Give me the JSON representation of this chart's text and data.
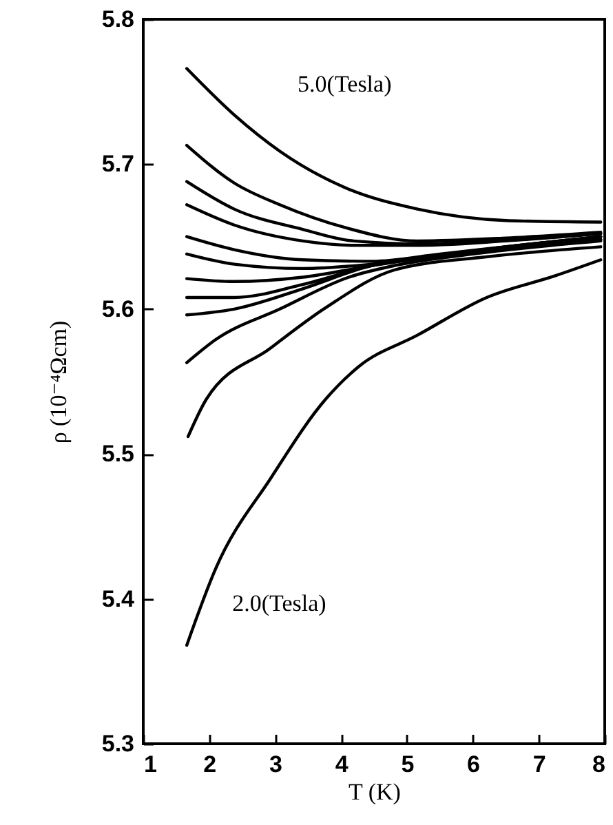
{
  "chart_data": {
    "type": "line",
    "xlabel": "T  (K)",
    "ylabel": "ρ  (10⁻⁴Ωcm)",
    "xlim": [
      1,
      8
    ],
    "ylim": [
      5.3,
      5.8
    ],
    "xticks": [
      1,
      2,
      3,
      4,
      5,
      6,
      7,
      8
    ],
    "yticks": [
      5.3,
      5.4,
      5.5,
      5.6,
      5.7,
      5.8
    ],
    "grid": false,
    "marker": "none",
    "line_style": "solid",
    "series": [
      {
        "name": "5.0(Tesla)",
        "color": "#000000",
        "x": [
          1.66,
          2.38,
          3.07,
          4.05,
          5.16,
          6.55,
          7.94
        ],
        "values": [
          5.766,
          5.734,
          5.709,
          5.684,
          5.669,
          5.661,
          5.66
        ]
      },
      {
        "color": "#000000",
        "x": [
          1.66,
          2.38,
          3.07,
          4.08,
          5.16,
          6.5,
          7.94
        ],
        "values": [
          5.713,
          5.687,
          5.672,
          5.656,
          5.647,
          5.649,
          5.653
        ]
      },
      {
        "color": "#000000",
        "x": [
          1.66,
          2.38,
          3.42,
          4.19,
          5.2,
          6.5,
          7.94
        ],
        "values": [
          5.688,
          5.669,
          5.655,
          5.647,
          5.645,
          5.648,
          5.652
        ]
      },
      {
        "color": "#000000",
        "x": [
          1.66,
          2.38,
          3.42,
          4.19,
          5.2,
          6.5,
          7.94
        ],
        "values": [
          5.672,
          5.658,
          5.647,
          5.644,
          5.644,
          5.647,
          5.652
        ]
      },
      {
        "color": "#000000",
        "x": [
          1.66,
          2.38,
          3.42,
          4.47,
          5.5,
          6.7,
          7.94
        ],
        "values": [
          5.65,
          5.641,
          5.634,
          5.633,
          5.638,
          5.644,
          5.65
        ]
      },
      {
        "color": "#000000",
        "x": [
          1.66,
          2.38,
          3.42,
          4.47,
          5.5,
          6.7,
          7.94
        ],
        "values": [
          5.638,
          5.631,
          5.628,
          5.631,
          5.637,
          5.643,
          5.648
        ]
      },
      {
        "color": "#000000",
        "x": [
          1.66,
          2.38,
          3.42,
          4.47,
          5.5,
          6.7,
          7.94
        ],
        "values": [
          5.621,
          5.619,
          5.622,
          5.63,
          5.637,
          5.644,
          5.65
        ]
      },
      {
        "color": "#000000",
        "x": [
          1.66,
          2.38,
          3.42,
          4.47,
          5.5,
          6.7,
          7.94
        ],
        "values": [
          5.608,
          5.608,
          5.617,
          5.63,
          5.637,
          5.644,
          5.65
        ]
      },
      {
        "color": "#000000",
        "x": [
          1.66,
          2.38,
          3.42,
          4.47,
          5.5,
          6.7,
          7.94
        ],
        "values": [
          5.596,
          5.6,
          5.614,
          5.63,
          5.636,
          5.642,
          5.648
        ]
      },
      {
        "color": "#000000",
        "x": [
          1.66,
          2.1,
          3.07,
          4.12,
          4.81,
          6.0,
          7.94
        ],
        "values": [
          5.563,
          5.579,
          5.6,
          5.622,
          5.63,
          5.638,
          5.647
        ]
      },
      {
        "color": "#000000",
        "x": [
          1.68,
          1.96,
          2.93,
          3.77,
          4.81,
          6.2,
          7.94
        ],
        "values": [
          5.512,
          5.538,
          5.573,
          5.601,
          5.627,
          5.636,
          5.643
        ]
      },
      {
        "name": "2.0(Tesla)",
        "color": "#000000",
        "x": [
          1.66,
          2.1,
          2.93,
          3.77,
          4.26,
          5.16,
          6.21,
          7.25,
          7.94
        ],
        "values": [
          5.368,
          5.421,
          5.483,
          5.538,
          5.56,
          5.582,
          5.608,
          5.623,
          5.634
        ]
      }
    ]
  }
}
